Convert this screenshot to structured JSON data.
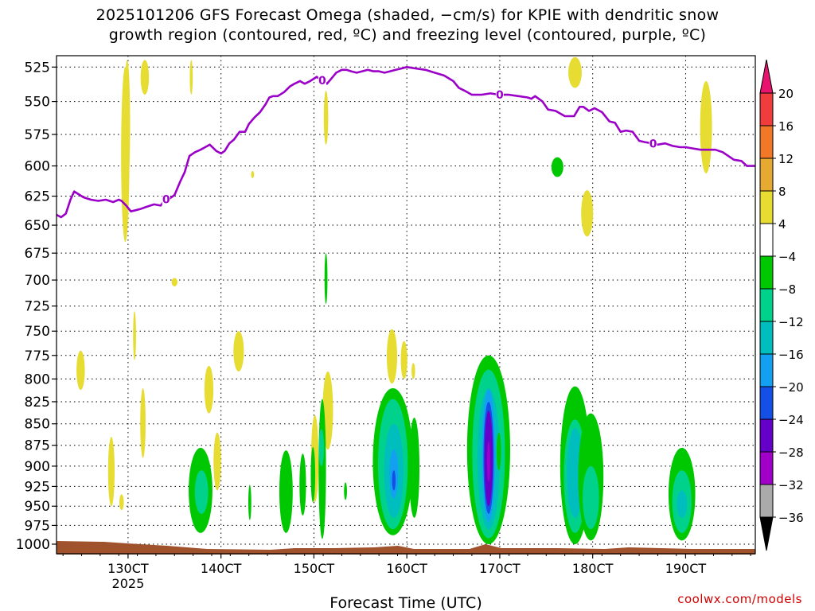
{
  "chart_data": {
    "type": "heatmap",
    "title_line1": "2025101206 GFS Forecast Omega (shaded, −cm/s) for KPIE with dendritic snow",
    "title_line2": "growth region (contoured, red, ºC) and freezing level (contoured, purple, ºC)",
    "xlabel": "Forecast Time (UTC)",
    "credit": "coolwx.com/models",
    "xlim": [
      122.3,
      197.5
    ],
    "ylim": [
      1013,
      517
    ],
    "x_ticks": [
      {
        "x": 130,
        "label": "130CT",
        "sub": "2025"
      },
      {
        "x": 140,
        "label": "140CT",
        "sub": ""
      },
      {
        "x": 150,
        "label": "150CT",
        "sub": ""
      },
      {
        "x": 160,
        "label": "160CT",
        "sub": ""
      },
      {
        "x": 170,
        "label": "170CT",
        "sub": ""
      },
      {
        "x": 180,
        "label": "180CT",
        "sub": ""
      },
      {
        "x": 190,
        "label": "190CT",
        "sub": ""
      }
    ],
    "y_ticks": [
      {
        "p": 525,
        "label": "525"
      },
      {
        "p": 550,
        "label": "550"
      },
      {
        "p": 575,
        "label": "575"
      },
      {
        "p": 600,
        "label": "600"
      },
      {
        "p": 625,
        "label": "625"
      },
      {
        "p": 650,
        "label": "650"
      },
      {
        "p": 675,
        "label": "675"
      },
      {
        "p": 700,
        "label": "700"
      },
      {
        "p": 725,
        "label": "725"
      },
      {
        "p": 750,
        "label": "750"
      },
      {
        "p": 775,
        "label": "775"
      },
      {
        "p": 800,
        "label": "800"
      },
      {
        "p": 825,
        "label": "825"
      },
      {
        "p": 850,
        "label": "850"
      },
      {
        "p": 875,
        "label": "875"
      },
      {
        "p": 900,
        "label": "900"
      },
      {
        "p": 925,
        "label": "925"
      },
      {
        "p": 950,
        "label": "950"
      },
      {
        "p": 975,
        "label": "975"
      },
      {
        "p": 1000,
        "label": "1000"
      }
    ],
    "colorbar": {
      "levels": [
        "20",
        "16",
        "12",
        "8",
        "4",
        "−4",
        "−8",
        "−12",
        "−16",
        "−20",
        "−24",
        "−28",
        "−32",
        "−36"
      ],
      "colors": [
        "#e60a5a",
        "#f03c3c",
        "#f07828",
        "#e6aa32",
        "#e6dc32",
        "#ffffff",
        "#00c800",
        "#00d28c",
        "#00bebe",
        "#14a0f0",
        "#1450e6",
        "#6400c8",
        "#a000c8",
        "#aaaaaa"
      ],
      "top_arrow_color": "#e6146e",
      "bottom_arrow_color": "#000000"
    },
    "freezing_level": {
      "name": "0",
      "color": "#9b00c8",
      "label_value": "0",
      "label_x": [
        134.1,
        150.9,
        170.0,
        186.5
      ],
      "x": [
        122.3,
        122.8,
        123.3,
        123.8,
        124.2,
        124.6,
        125.2,
        126.0,
        126.8,
        127.6,
        128.4,
        129.0,
        129.3,
        129.8,
        130.3,
        130.8,
        131.3,
        132.0,
        132.8,
        133.5,
        134.0,
        134.5,
        135.0,
        135.6,
        136.1,
        136.6,
        137.2,
        137.8,
        138.3,
        138.8,
        139.5,
        140.0,
        140.4,
        140.9,
        141.4,
        142.0,
        142.6,
        143.0,
        143.6,
        144.2,
        144.8,
        145.2,
        145.6,
        146.1,
        146.8,
        147.4,
        147.9,
        148.5,
        149.0,
        149.6,
        150.3,
        150.8,
        151.4,
        151.9,
        152.4,
        153.0,
        153.5,
        154.0,
        154.6,
        155.2,
        155.8,
        156.4,
        157.0,
        157.6,
        158.2,
        158.8,
        159.4,
        160.0,
        161.0,
        162.0,
        163.0,
        164.0,
        165.0,
        165.6,
        166.2,
        167.0,
        168.0,
        169.0,
        170.0,
        171.0,
        172.0,
        173.0,
        173.4,
        173.8,
        174.6,
        175.2,
        176.0,
        177.0,
        178.0,
        178.6,
        179.0,
        179.6,
        180.2,
        181.0,
        181.8,
        182.4,
        183.0,
        183.6,
        184.3,
        185.0,
        185.6,
        186.4,
        187.0,
        187.8,
        188.6,
        189.4,
        190.0,
        190.8,
        191.6,
        192.4,
        193.2,
        194.0,
        194.6,
        195.2,
        196.0,
        196.6,
        197.5
      ],
      "p": [
        641,
        643,
        640,
        628,
        621,
        623,
        626,
        628,
        629,
        628,
        630,
        628,
        629,
        633,
        638,
        637,
        636,
        634,
        632,
        633,
        628,
        627,
        624,
        613,
        605,
        592,
        589,
        587,
        585,
        583,
        588,
        590,
        588,
        582,
        579,
        573,
        573,
        567,
        562,
        558,
        552,
        547,
        546,
        546,
        543,
        539,
        537,
        535,
        537,
        535,
        532,
        534,
        537,
        533,
        529,
        527,
        527,
        528,
        529,
        528,
        527,
        528,
        528,
        529,
        528,
        527,
        526,
        525,
        526,
        527,
        529,
        531,
        535,
        540,
        542,
        545,
        545,
        544,
        545,
        545,
        546,
        547,
        548,
        546,
        550,
        556,
        557,
        561,
        561,
        554,
        554,
        557,
        555,
        558,
        565,
        566,
        573,
        572,
        573,
        580,
        581,
        582,
        583,
        582,
        584,
        585,
        585,
        586,
        587,
        587,
        587,
        589,
        592,
        595,
        596,
        600,
        600,
        599
      ],
      "note": "x in forecast hours (day*10 = day.0), p in hPa"
    },
    "omega_shading": [
      {
        "x": 129.7,
        "p0": 525,
        "p1": 665,
        "w": 0.28,
        "v": 5
      },
      {
        "x": 129.9,
        "p0": 520,
        "p1": 620,
        "w": 0.2,
        "v": 7
      },
      {
        "x": 131.8,
        "p0": 520,
        "p1": 545,
        "w": 0.28,
        "v": 6
      },
      {
        "x": 136.8,
        "p0": 520,
        "p1": 545,
        "w": 0.1,
        "v": 5
      },
      {
        "x": 135.0,
        "p0": 698,
        "p1": 706,
        "w": 0.2,
        "v": 5
      },
      {
        "x": 124.9,
        "p0": 770,
        "p1": 812,
        "w": 0.28,
        "v": 5
      },
      {
        "x": 141.9,
        "p0": 750,
        "p1": 792,
        "w": 0.35,
        "v": 5
      },
      {
        "x": 138.7,
        "p0": 786,
        "p1": 838,
        "w": 0.3,
        "v": 5
      },
      {
        "x": 139.6,
        "p0": 860,
        "p1": 930,
        "w": 0.25,
        "v": 5
      },
      {
        "x": 128.2,
        "p0": 865,
        "p1": 950,
        "w": 0.22,
        "v": 5
      },
      {
        "x": 129.3,
        "p0": 935,
        "p1": 955,
        "w": 0.15,
        "v": 5
      },
      {
        "x": 131.6,
        "p0": 810,
        "p1": 890,
        "w": 0.18,
        "v": 5
      },
      {
        "x": 130.7,
        "p0": 730,
        "p1": 780,
        "w": 0.1,
        "v": 5
      },
      {
        "x": 151.3,
        "p0": 542,
        "p1": 583,
        "w": 0.15,
        "v": 5
      },
      {
        "x": 143.4,
        "p0": 604,
        "p1": 610,
        "w": 0.1,
        "v": 5
      },
      {
        "x": 150.1,
        "p0": 840,
        "p1": 945,
        "w": 0.25,
        "v": 5
      },
      {
        "x": 151.5,
        "p0": 792,
        "p1": 880,
        "w": 0.35,
        "v": 5
      },
      {
        "x": 158.4,
        "p0": 748,
        "p1": 805,
        "w": 0.35,
        "v": 5
      },
      {
        "x": 159.7,
        "p0": 760,
        "p1": 800,
        "w": 0.22,
        "v": 5
      },
      {
        "x": 160.7,
        "p0": 783,
        "p1": 800,
        "w": 0.12,
        "v": 5
      },
      {
        "x": 170.0,
        "p0": 815,
        "p1": 925,
        "w": 0.4,
        "v": 6
      },
      {
        "x": 178.1,
        "p0": 518,
        "p1": 540,
        "w": 0.45,
        "v": 6
      },
      {
        "x": 179.4,
        "p0": 620,
        "p1": 660,
        "w": 0.4,
        "v": 6
      },
      {
        "x": 192.2,
        "p0": 535,
        "p1": 606,
        "w": 0.4,
        "v": 5
      },
      {
        "x": 176.2,
        "p0": 593,
        "p1": 609,
        "w": 0.4,
        "v": -6
      },
      {
        "x": 151.3,
        "p0": 675,
        "p1": 723,
        "w": 0.1,
        "v": -6
      },
      {
        "x": 137.8,
        "p0": 878,
        "p1": 985,
        "w": 0.8,
        "v": -6
      },
      {
        "x": 137.9,
        "p0": 905,
        "p1": 960,
        "w": 0.45,
        "v": -10
      },
      {
        "x": 143.1,
        "p0": 923,
        "p1": 968,
        "w": 0.1,
        "v": -6
      },
      {
        "x": 147.0,
        "p0": 881,
        "p1": 985,
        "w": 0.45,
        "v": -6
      },
      {
        "x": 148.8,
        "p0": 885,
        "p1": 962,
        "w": 0.22,
        "v": -6
      },
      {
        "x": 149.9,
        "p0": 877,
        "p1": 945,
        "w": 0.15,
        "v": -6
      },
      {
        "x": 150.9,
        "p0": 822,
        "p1": 993,
        "w": 0.25,
        "v": -6
      },
      {
        "x": 150.8,
        "p0": 856,
        "p1": 900,
        "w": 0.18,
        "v": -10
      },
      {
        "x": 153.4,
        "p0": 920,
        "p1": 942,
        "w": 0.1,
        "v": -6
      },
      {
        "x": 158.5,
        "p0": 810,
        "p1": 988,
        "w": 1.35,
        "v": -6
      },
      {
        "x": 158.5,
        "p0": 822,
        "p1": 980,
        "w": 1.0,
        "v": -10
      },
      {
        "x": 158.6,
        "p0": 850,
        "p1": 965,
        "w": 0.65,
        "v": -14
      },
      {
        "x": 158.6,
        "p0": 880,
        "p1": 940,
        "w": 0.3,
        "v": -18
      },
      {
        "x": 158.6,
        "p0": 905,
        "p1": 930,
        "w": 0.12,
        "v": -22
      },
      {
        "x": 160.8,
        "p0": 843,
        "p1": 965,
        "w": 0.35,
        "v": -6
      },
      {
        "x": 168.8,
        "p0": 775,
        "p1": 1000,
        "w": 1.45,
        "v": -6
      },
      {
        "x": 168.8,
        "p0": 790,
        "p1": 992,
        "w": 1.1,
        "v": -10
      },
      {
        "x": 168.8,
        "p0": 810,
        "p1": 980,
        "w": 0.75,
        "v": -14
      },
      {
        "x": 168.8,
        "p0": 812,
        "p1": 970,
        "w": 0.45,
        "v": -18
      },
      {
        "x": 168.8,
        "p0": 825,
        "p1": 960,
        "w": 0.35,
        "v": -22
      },
      {
        "x": 168.8,
        "p0": 835,
        "p1": 950,
        "w": 0.28,
        "v": -26
      },
      {
        "x": 168.8,
        "p0": 870,
        "p1": 920,
        "w": 0.1,
        "v": -30
      },
      {
        "x": 169.9,
        "p0": 860,
        "p1": 905,
        "w": 0.15,
        "v": -6
      },
      {
        "x": 178.1,
        "p0": 808,
        "p1": 1000,
        "w": 1.0,
        "v": -6
      },
      {
        "x": 178.1,
        "p0": 845,
        "p1": 985,
        "w": 0.75,
        "v": -10
      },
      {
        "x": 178.1,
        "p0": 855,
        "p1": 965,
        "w": 0.55,
        "v": -14
      },
      {
        "x": 179.8,
        "p0": 838,
        "p1": 995,
        "w": 0.85,
        "v": -6
      },
      {
        "x": 179.8,
        "p0": 900,
        "p1": 980,
        "w": 0.55,
        "v": -10
      },
      {
        "x": 189.6,
        "p0": 878,
        "p1": 995,
        "w": 0.9,
        "v": -6
      },
      {
        "x": 189.6,
        "p0": 905,
        "p1": 985,
        "w": 0.65,
        "v": -10
      },
      {
        "x": 189.6,
        "p0": 930,
        "p1": 965,
        "w": 0.35,
        "v": -14
      }
    ],
    "terrain_color": "#a0522d"
  }
}
